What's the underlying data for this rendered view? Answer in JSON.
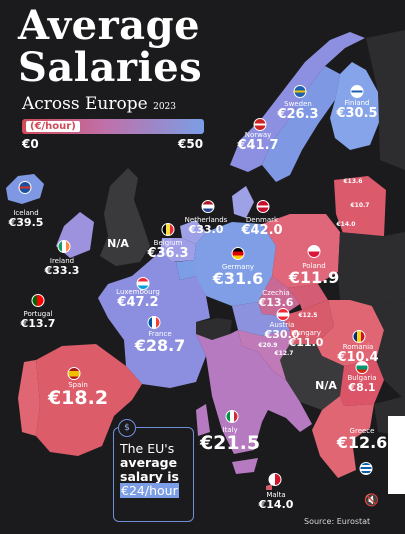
{
  "title_line1": "Average",
  "title_line2": "Salaries",
  "subtitle": "Across Europe",
  "year": "2023",
  "legend": {
    "unit": "(€/hour)",
    "min": "€0",
    "max": "€50"
  },
  "colors": {
    "low": "#d24a58",
    "mid": "#c070a8",
    "high": "#7b9ee6",
    "na": "#3a3a3d",
    "background": "#1b1b1d"
  },
  "countries": [
    {
      "id": "iceland",
      "name": "Iceland",
      "value": "€39.5"
    },
    {
      "id": "norway",
      "name": "Norway",
      "value": "€41.7"
    },
    {
      "id": "sweden",
      "name": "Sweden",
      "value": "€26.3"
    },
    {
      "id": "finland",
      "name": "Finland",
      "value": "€30.5"
    },
    {
      "id": "ireland",
      "name": "Ireland",
      "value": "€33.3"
    },
    {
      "id": "uk",
      "name": "",
      "value": "N/A"
    },
    {
      "id": "netherlands",
      "name": "Netherlands",
      "value": "€33.0"
    },
    {
      "id": "denmark",
      "name": "Denmark",
      "value": "€42.0"
    },
    {
      "id": "belgium",
      "name": "Belgium",
      "value": "€36.3"
    },
    {
      "id": "germany",
      "name": "Germany",
      "value": "€31.6"
    },
    {
      "id": "poland",
      "name": "Poland",
      "value": "€11.9"
    },
    {
      "id": "luxembourg",
      "name": "Luxembourg",
      "value": "€47.2"
    },
    {
      "id": "czechia",
      "name": "Czechia",
      "value": "€13.6"
    },
    {
      "id": "austria",
      "name": "Austria",
      "value": "€30.0"
    },
    {
      "id": "hungary",
      "name": "Hungary",
      "value": "€11.0"
    },
    {
      "id": "romania",
      "name": "Romania",
      "value": "€10.4"
    },
    {
      "id": "france",
      "name": "France",
      "value": "€28.7"
    },
    {
      "id": "portugal",
      "name": "Portugal",
      "value": "€13.7"
    },
    {
      "id": "spain",
      "name": "Spain",
      "value": "€18.2"
    },
    {
      "id": "italy",
      "name": "Italy",
      "value": "€21.5"
    },
    {
      "id": "bulgaria",
      "name": "Bulgaria",
      "value": "€8.1"
    },
    {
      "id": "greece",
      "name": "Greece",
      "value": "€12.6"
    },
    {
      "id": "malta",
      "name": "Malta",
      "value": "€14.0"
    },
    {
      "id": "balkans",
      "name": "",
      "value": "N/A"
    },
    {
      "id": "estonia",
      "name": "",
      "value": "€13.6"
    },
    {
      "id": "latvia",
      "name": "",
      "value": "€10.7"
    },
    {
      "id": "lithuania",
      "name": "",
      "value": "€14.0"
    },
    {
      "id": "slovakia",
      "name": "",
      "value": "€12.5"
    },
    {
      "id": "slovenia",
      "name": "",
      "value": "€20.9"
    },
    {
      "id": "croatia",
      "name": "",
      "value": "€12.7"
    }
  ],
  "callout": {
    "line1": "The EU's",
    "line2": "average",
    "line3": "salary is",
    "highlight": "€24/hour",
    "icon": "money-icon"
  },
  "source": "Source: Eurostat",
  "mute_icon": "speaker-mute-icon"
}
